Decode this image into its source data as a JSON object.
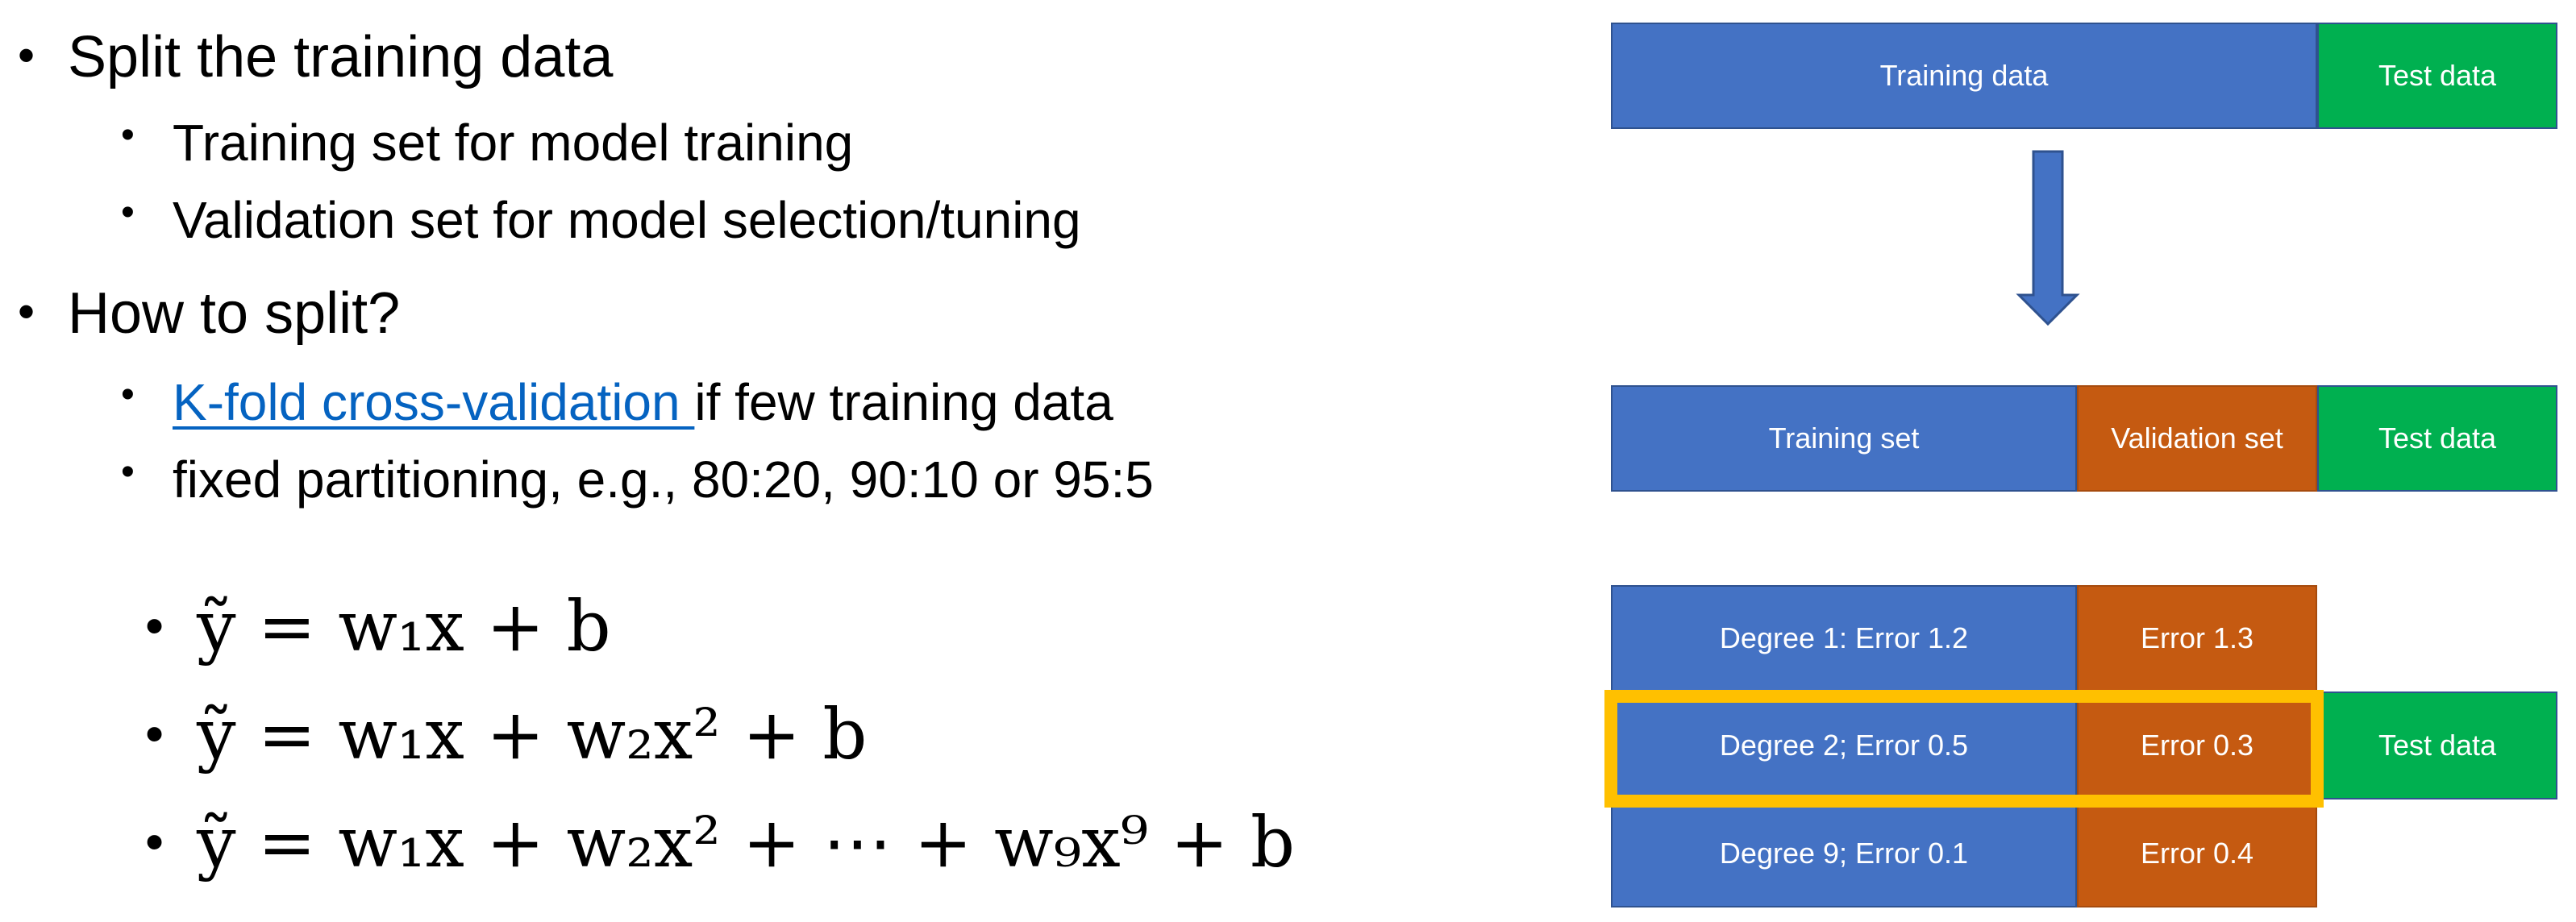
{
  "bullets": {
    "split_title": "Split the training data",
    "training_set": "Training set for model training",
    "validation_set": "Validation set for model selection/tuning",
    "how_title": "How to split?",
    "kfold_link": "K-fold cross-validation ",
    "kfold_rest": "if few training data",
    "fixed": "fixed partitioning, e.g., 80:20, 90:10 or 95:5"
  },
  "equations": [
    "ỹ = w₁x + b",
    "ỹ = w₁x + w₂x² + b",
    "ỹ = w₁x + w₂x² + ⋯ + w₉x⁹ + b"
  ],
  "diagram": {
    "row1": {
      "training": "Training data",
      "test": "Test data"
    },
    "row2": {
      "training": "Training set",
      "validation": "Validation set",
      "test": "Test data"
    },
    "row3": [
      {
        "model": "Degree 1: Error 1.2",
        "val": "Error 1.3"
      },
      {
        "model": "Degree 2; Error 0.5",
        "val": "Error 0.3"
      },
      {
        "model": "Degree 9; Error 0.1",
        "val": "Error 0.4"
      }
    ],
    "row3_test": "Test data"
  },
  "colors": {
    "blue": "#4472c4",
    "orange": "#c55a11",
    "green": "#00b050",
    "highlight": "#ffc000",
    "link": "#0563c1"
  }
}
